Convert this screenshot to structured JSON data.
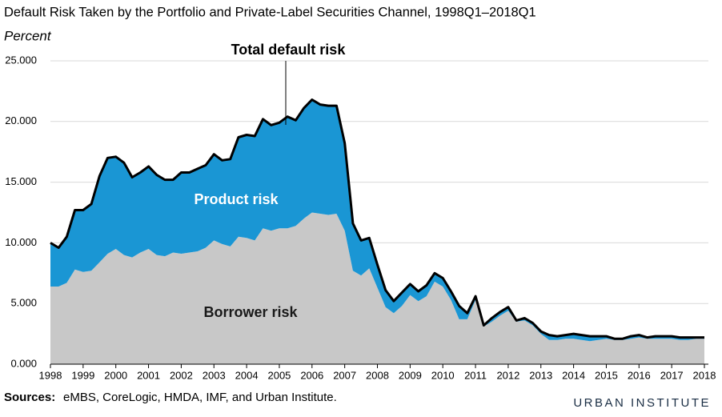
{
  "chart_data": {
    "type": "stacked_area",
    "title": "Default Risk Taken by the Portfolio and Private-Label Securities Channel, 1998Q1–2018Q1",
    "subtitle": "Percent",
    "annotation": "Total default risk",
    "source_label": "Sources:",
    "source": "eMBS, CoreLogic, HMDA, IMF, and Urban Institute.",
    "branding": "URBAN INSTITUTE",
    "categories": [
      "1998",
      null,
      null,
      null,
      "1999",
      null,
      null,
      null,
      "2000",
      null,
      null,
      null,
      "2001",
      null,
      null,
      null,
      "2002",
      null,
      null,
      null,
      "2003",
      null,
      null,
      null,
      "2004",
      null,
      null,
      null,
      "2005",
      null,
      null,
      null,
      "2006",
      null,
      null,
      null,
      "2007",
      null,
      null,
      null,
      "2008",
      null,
      null,
      null,
      "2009",
      null,
      null,
      null,
      "2010",
      null,
      null,
      null,
      "2011",
      null,
      null,
      null,
      "2012",
      null,
      null,
      null,
      "2013",
      null,
      null,
      null,
      "2014",
      null,
      null,
      null,
      "2015",
      null,
      null,
      null,
      "2016",
      null,
      null,
      null,
      "2017",
      null,
      null,
      null,
      "2018"
    ],
    "series": [
      {
        "name": "Borrower risk",
        "color": "#c8c8c8",
        "values": [
          6.4,
          6.4,
          6.7,
          7.8,
          7.6,
          7.7,
          8.4,
          9.1,
          9.5,
          9.0,
          8.8,
          9.2,
          9.5,
          9.0,
          8.9,
          9.2,
          9.1,
          9.2,
          9.3,
          9.6,
          10.2,
          9.9,
          9.7,
          10.5,
          10.4,
          10.2,
          11.2,
          11.0,
          11.2,
          11.2,
          11.4,
          12.0,
          12.5,
          12.4,
          12.3,
          12.4,
          11.0,
          7.7,
          7.3,
          7.9,
          6.3,
          4.7,
          4.2,
          4.8,
          5.7,
          5.2,
          5.6,
          6.8,
          6.4,
          5.3,
          3.7,
          3.7,
          5.3,
          3.1,
          3.5,
          4.0,
          4.4,
          3.5,
          3.6,
          3.2,
          2.5,
          2.0,
          2.0,
          2.1,
          2.1,
          2.0,
          1.9,
          2.0,
          2.1,
          2.0,
          2.0,
          2.1,
          2.2,
          2.1,
          2.1,
          2.1,
          2.1,
          2.0,
          2.0,
          2.1,
          2.1
        ]
      },
      {
        "name": "Product risk",
        "color": "#1a96d4",
        "values": [
          3.6,
          3.2,
          3.8,
          4.9,
          5.1,
          5.5,
          7.1,
          7.9,
          7.6,
          7.6,
          6.6,
          6.6,
          6.8,
          6.6,
          6.3,
          6.0,
          6.7,
          6.6,
          6.8,
          6.8,
          7.1,
          6.9,
          7.2,
          8.2,
          8.5,
          8.6,
          9.0,
          8.7,
          8.7,
          9.2,
          8.7,
          9.1,
          9.3,
          9.0,
          9.0,
          8.9,
          7.2,
          3.9,
          2.9,
          2.5,
          1.9,
          1.4,
          1.0,
          1.1,
          0.9,
          0.8,
          0.9,
          0.7,
          0.7,
          0.7,
          1.1,
          0.5,
          0.3,
          0.1,
          0.3,
          0.3,
          0.3,
          0.1,
          0.2,
          0.2,
          0.2,
          0.4,
          0.3,
          0.3,
          0.4,
          0.4,
          0.4,
          0.3,
          0.2,
          0.1,
          0.1,
          0.2,
          0.2,
          0.1,
          0.2,
          0.2,
          0.2,
          0.2,
          0.2,
          0.1,
          0.1
        ]
      }
    ],
    "outline_color": "#000000",
    "ylim": [
      0,
      25
    ],
    "yticks": [
      {
        "value": 0,
        "label": "0.000"
      },
      {
        "value": 5,
        "label": "5.000"
      },
      {
        "value": 10,
        "label": "10.000"
      },
      {
        "value": 15,
        "label": "15.000"
      },
      {
        "value": 20,
        "label": "20.000"
      },
      {
        "value": 25,
        "label": "25.000"
      }
    ],
    "grid": true
  }
}
